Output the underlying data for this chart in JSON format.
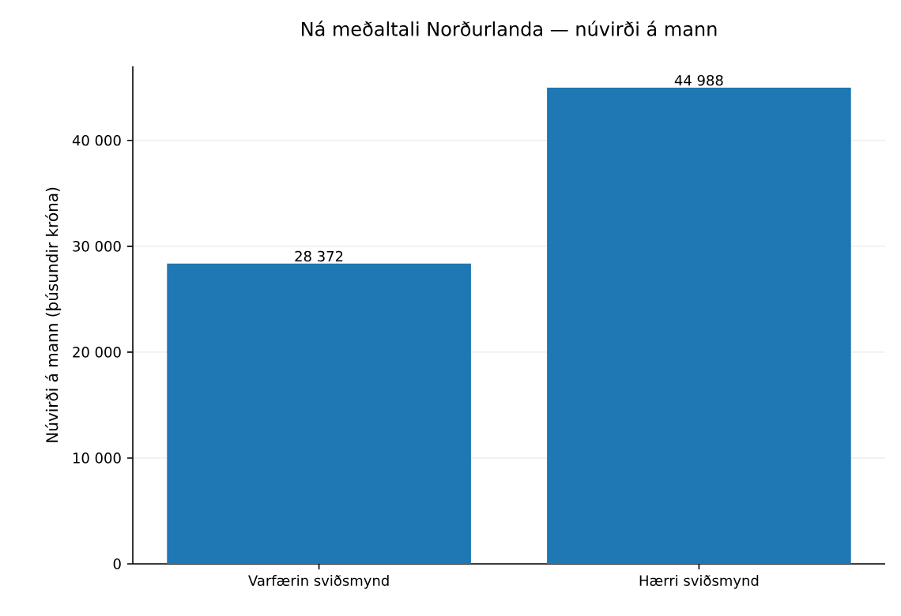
{
  "chart_data": {
    "type": "bar",
    "title": "Ná meðaltali Norðurlanda — núvirði á mann",
    "ylabel": "Núvirði á mann (þúsundir króna)",
    "categories": [
      "Varfærin sviðsmynd",
      "Hærri sviðsmynd"
    ],
    "values": [
      28372,
      44988
    ],
    "value_labels": [
      "28 372",
      "44 988"
    ],
    "color": "#1f77b4",
    "ylim": [
      0,
      47000
    ],
    "yticks": [
      0,
      {
        "value": 10000,
        "label": "10 000"
      },
      {
        "value": 20000,
        "label": "20 000"
      },
      {
        "value": 30000,
        "label": "30 000"
      },
      {
        "value": 40000,
        "label": "40 000"
      }
    ],
    "grid": "y"
  }
}
